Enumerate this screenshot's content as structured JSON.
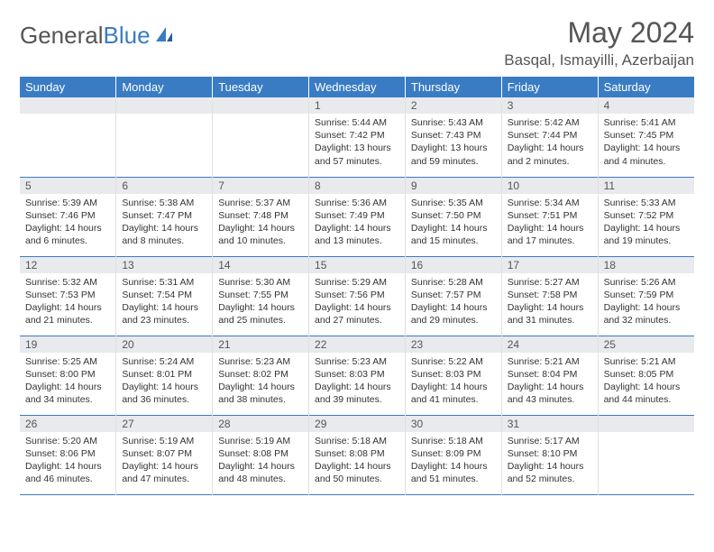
{
  "logo": {
    "text_grey": "General",
    "text_blue": "Blue"
  },
  "title": "May 2024",
  "location": "Basqal, Ismayilli, Azerbaijan",
  "colors": {
    "header_bg": "#3a7cc4",
    "header_text": "#ffffff",
    "daynum_bg": "#e8eaed",
    "text": "#555555",
    "border": "#3a7cc4"
  },
  "day_headers": [
    "Sunday",
    "Monday",
    "Tuesday",
    "Wednesday",
    "Thursday",
    "Friday",
    "Saturday"
  ],
  "weeks": [
    [
      {
        "num": "",
        "sunrise": "",
        "sunset": "",
        "daylight": ""
      },
      {
        "num": "",
        "sunrise": "",
        "sunset": "",
        "daylight": ""
      },
      {
        "num": "",
        "sunrise": "",
        "sunset": "",
        "daylight": ""
      },
      {
        "num": "1",
        "sunrise": "Sunrise: 5:44 AM",
        "sunset": "Sunset: 7:42 PM",
        "daylight": "Daylight: 13 hours and 57 minutes."
      },
      {
        "num": "2",
        "sunrise": "Sunrise: 5:43 AM",
        "sunset": "Sunset: 7:43 PM",
        "daylight": "Daylight: 13 hours and 59 minutes."
      },
      {
        "num": "3",
        "sunrise": "Sunrise: 5:42 AM",
        "sunset": "Sunset: 7:44 PM",
        "daylight": "Daylight: 14 hours and 2 minutes."
      },
      {
        "num": "4",
        "sunrise": "Sunrise: 5:41 AM",
        "sunset": "Sunset: 7:45 PM",
        "daylight": "Daylight: 14 hours and 4 minutes."
      }
    ],
    [
      {
        "num": "5",
        "sunrise": "Sunrise: 5:39 AM",
        "sunset": "Sunset: 7:46 PM",
        "daylight": "Daylight: 14 hours and 6 minutes."
      },
      {
        "num": "6",
        "sunrise": "Sunrise: 5:38 AM",
        "sunset": "Sunset: 7:47 PM",
        "daylight": "Daylight: 14 hours and 8 minutes."
      },
      {
        "num": "7",
        "sunrise": "Sunrise: 5:37 AM",
        "sunset": "Sunset: 7:48 PM",
        "daylight": "Daylight: 14 hours and 10 minutes."
      },
      {
        "num": "8",
        "sunrise": "Sunrise: 5:36 AM",
        "sunset": "Sunset: 7:49 PM",
        "daylight": "Daylight: 14 hours and 13 minutes."
      },
      {
        "num": "9",
        "sunrise": "Sunrise: 5:35 AM",
        "sunset": "Sunset: 7:50 PM",
        "daylight": "Daylight: 14 hours and 15 minutes."
      },
      {
        "num": "10",
        "sunrise": "Sunrise: 5:34 AM",
        "sunset": "Sunset: 7:51 PM",
        "daylight": "Daylight: 14 hours and 17 minutes."
      },
      {
        "num": "11",
        "sunrise": "Sunrise: 5:33 AM",
        "sunset": "Sunset: 7:52 PM",
        "daylight": "Daylight: 14 hours and 19 minutes."
      }
    ],
    [
      {
        "num": "12",
        "sunrise": "Sunrise: 5:32 AM",
        "sunset": "Sunset: 7:53 PM",
        "daylight": "Daylight: 14 hours and 21 minutes."
      },
      {
        "num": "13",
        "sunrise": "Sunrise: 5:31 AM",
        "sunset": "Sunset: 7:54 PM",
        "daylight": "Daylight: 14 hours and 23 minutes."
      },
      {
        "num": "14",
        "sunrise": "Sunrise: 5:30 AM",
        "sunset": "Sunset: 7:55 PM",
        "daylight": "Daylight: 14 hours and 25 minutes."
      },
      {
        "num": "15",
        "sunrise": "Sunrise: 5:29 AM",
        "sunset": "Sunset: 7:56 PM",
        "daylight": "Daylight: 14 hours and 27 minutes."
      },
      {
        "num": "16",
        "sunrise": "Sunrise: 5:28 AM",
        "sunset": "Sunset: 7:57 PM",
        "daylight": "Daylight: 14 hours and 29 minutes."
      },
      {
        "num": "17",
        "sunrise": "Sunrise: 5:27 AM",
        "sunset": "Sunset: 7:58 PM",
        "daylight": "Daylight: 14 hours and 31 minutes."
      },
      {
        "num": "18",
        "sunrise": "Sunrise: 5:26 AM",
        "sunset": "Sunset: 7:59 PM",
        "daylight": "Daylight: 14 hours and 32 minutes."
      }
    ],
    [
      {
        "num": "19",
        "sunrise": "Sunrise: 5:25 AM",
        "sunset": "Sunset: 8:00 PM",
        "daylight": "Daylight: 14 hours and 34 minutes."
      },
      {
        "num": "20",
        "sunrise": "Sunrise: 5:24 AM",
        "sunset": "Sunset: 8:01 PM",
        "daylight": "Daylight: 14 hours and 36 minutes."
      },
      {
        "num": "21",
        "sunrise": "Sunrise: 5:23 AM",
        "sunset": "Sunset: 8:02 PM",
        "daylight": "Daylight: 14 hours and 38 minutes."
      },
      {
        "num": "22",
        "sunrise": "Sunrise: 5:23 AM",
        "sunset": "Sunset: 8:03 PM",
        "daylight": "Daylight: 14 hours and 39 minutes."
      },
      {
        "num": "23",
        "sunrise": "Sunrise: 5:22 AM",
        "sunset": "Sunset: 8:03 PM",
        "daylight": "Daylight: 14 hours and 41 minutes."
      },
      {
        "num": "24",
        "sunrise": "Sunrise: 5:21 AM",
        "sunset": "Sunset: 8:04 PM",
        "daylight": "Daylight: 14 hours and 43 minutes."
      },
      {
        "num": "25",
        "sunrise": "Sunrise: 5:21 AM",
        "sunset": "Sunset: 8:05 PM",
        "daylight": "Daylight: 14 hours and 44 minutes."
      }
    ],
    [
      {
        "num": "26",
        "sunrise": "Sunrise: 5:20 AM",
        "sunset": "Sunset: 8:06 PM",
        "daylight": "Daylight: 14 hours and 46 minutes."
      },
      {
        "num": "27",
        "sunrise": "Sunrise: 5:19 AM",
        "sunset": "Sunset: 8:07 PM",
        "daylight": "Daylight: 14 hours and 47 minutes."
      },
      {
        "num": "28",
        "sunrise": "Sunrise: 5:19 AM",
        "sunset": "Sunset: 8:08 PM",
        "daylight": "Daylight: 14 hours and 48 minutes."
      },
      {
        "num": "29",
        "sunrise": "Sunrise: 5:18 AM",
        "sunset": "Sunset: 8:08 PM",
        "daylight": "Daylight: 14 hours and 50 minutes."
      },
      {
        "num": "30",
        "sunrise": "Sunrise: 5:18 AM",
        "sunset": "Sunset: 8:09 PM",
        "daylight": "Daylight: 14 hours and 51 minutes."
      },
      {
        "num": "31",
        "sunrise": "Sunrise: 5:17 AM",
        "sunset": "Sunset: 8:10 PM",
        "daylight": "Daylight: 14 hours and 52 minutes."
      },
      {
        "num": "",
        "sunrise": "",
        "sunset": "",
        "daylight": ""
      }
    ]
  ]
}
